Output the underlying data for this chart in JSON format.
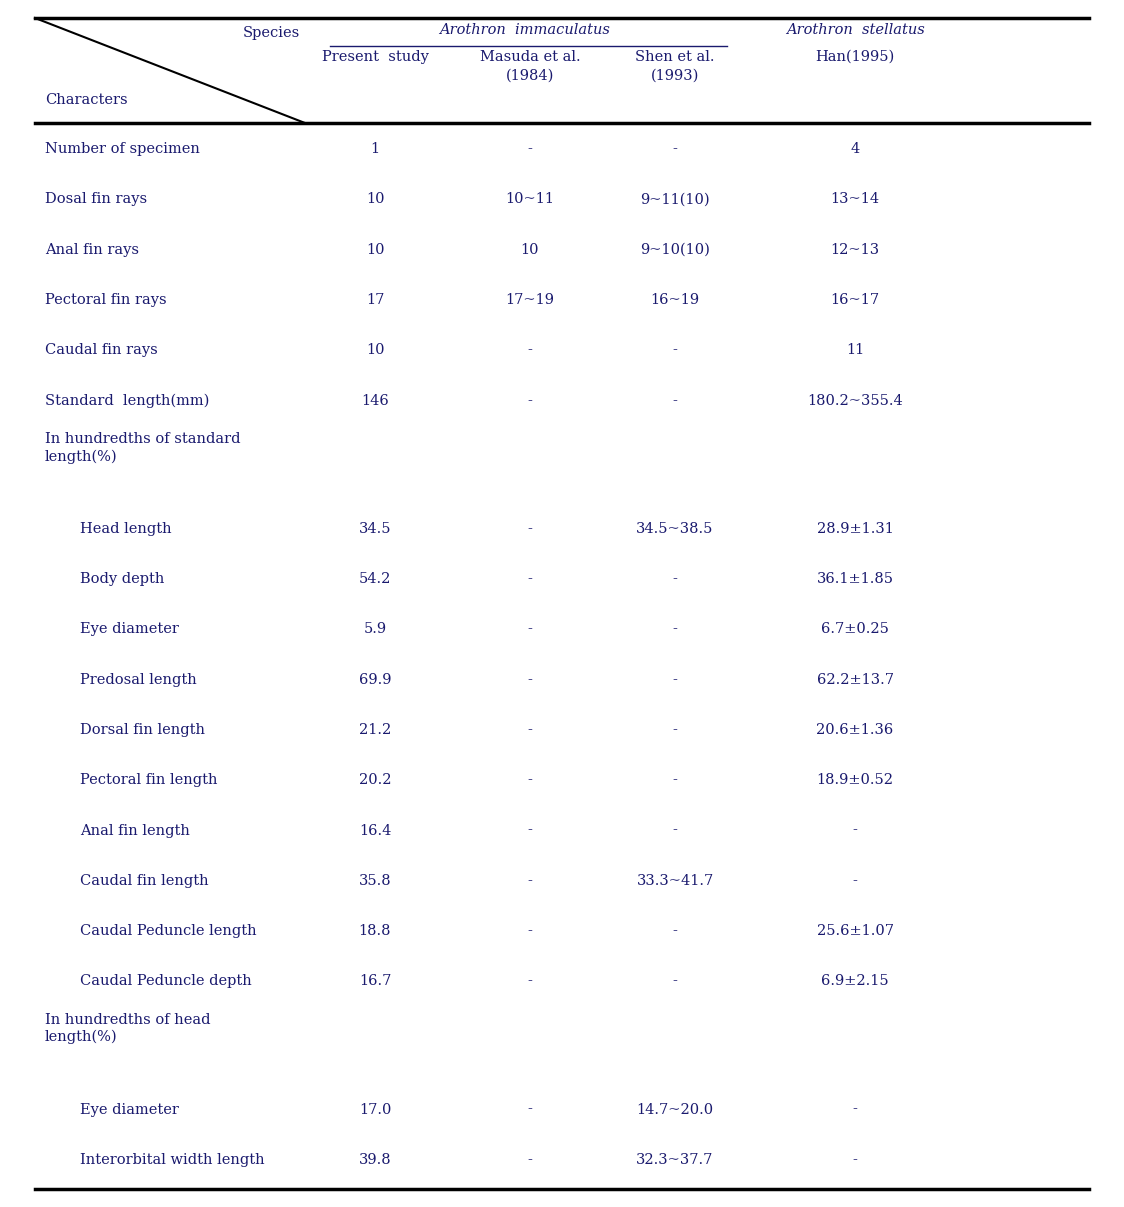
{
  "bg_color": "#ffffff",
  "text_color": "#1a1a6e",
  "rows": [
    {
      "char": "Number of specimen",
      "indent": 0,
      "vals": [
        "1",
        "-",
        "-",
        "4"
      ],
      "section": false
    },
    {
      "char": "Dosal fin rays",
      "indent": 0,
      "vals": [
        "10",
        "10~11",
        "9~11(10)",
        "13~14"
      ],
      "section": false
    },
    {
      "char": "Anal fin rays",
      "indent": 0,
      "vals": [
        "10",
        "10",
        "9~10(10)",
        "12~13"
      ],
      "section": false
    },
    {
      "char": "Pectoral fin rays",
      "indent": 0,
      "vals": [
        "17",
        "17~19",
        "16~19",
        "16~17"
      ],
      "section": false
    },
    {
      "char": "Caudal fin rays",
      "indent": 0,
      "vals": [
        "10",
        "-",
        "-",
        "11"
      ],
      "section": false
    },
    {
      "char": "Standard  length(mm)",
      "indent": 0,
      "vals": [
        "146",
        "-",
        "-",
        "180.2~355.4"
      ],
      "section": false
    },
    {
      "char": "In hundredths of standard\nlength(%)",
      "indent": 0,
      "vals": [
        "",
        "",
        "",
        ""
      ],
      "section": true
    },
    {
      "char": "Head length",
      "indent": 1,
      "vals": [
        "34.5",
        "-",
        "34.5~38.5",
        "28.9±1.31"
      ],
      "section": false
    },
    {
      "char": "Body depth",
      "indent": 1,
      "vals": [
        "54.2",
        "-",
        "-",
        "36.1±1.85"
      ],
      "section": false
    },
    {
      "char": "Eye diameter",
      "indent": 1,
      "vals": [
        "5.9",
        "-",
        "-",
        "6.7±0.25"
      ],
      "section": false
    },
    {
      "char": "Predosal length",
      "indent": 1,
      "vals": [
        "69.9",
        "-",
        "-",
        "62.2±13.7"
      ],
      "section": false
    },
    {
      "char": "Dorsal fin length",
      "indent": 1,
      "vals": [
        "21.2",
        "-",
        "-",
        "20.6±1.36"
      ],
      "section": false
    },
    {
      "char": "Pectoral fin length",
      "indent": 1,
      "vals": [
        "20.2",
        "-",
        "-",
        "18.9±0.52"
      ],
      "section": false
    },
    {
      "char": "Anal fin length",
      "indent": 1,
      "vals": [
        "16.4",
        "-",
        "-",
        "-"
      ],
      "section": false
    },
    {
      "char": "Caudal fin length",
      "indent": 1,
      "vals": [
        "35.8",
        "-",
        "33.3~41.7",
        "-"
      ],
      "section": false
    },
    {
      "char": "Caudal Peduncle length",
      "indent": 1,
      "vals": [
        "18.8",
        "-",
        "-",
        "25.6±1.07"
      ],
      "section": false
    },
    {
      "char": "Caudal Peduncle depth",
      "indent": 1,
      "vals": [
        "16.7",
        "-",
        "-",
        "6.9±2.15"
      ],
      "section": false
    },
    {
      "char": "In hundredths of head\nlength(%)",
      "indent": 0,
      "vals": [
        "",
        "",
        "",
        ""
      ],
      "section": true
    },
    {
      "char": "Eye diameter",
      "indent": 1,
      "vals": [
        "17.0",
        "-",
        "14.7~20.0",
        "-"
      ],
      "section": false
    },
    {
      "char": "Interorbital width length",
      "indent": 1,
      "vals": [
        "39.8",
        "-",
        "32.3~37.7",
        "-"
      ],
      "section": false
    }
  ],
  "font_size": 10.5,
  "font_size_header": 10.5
}
